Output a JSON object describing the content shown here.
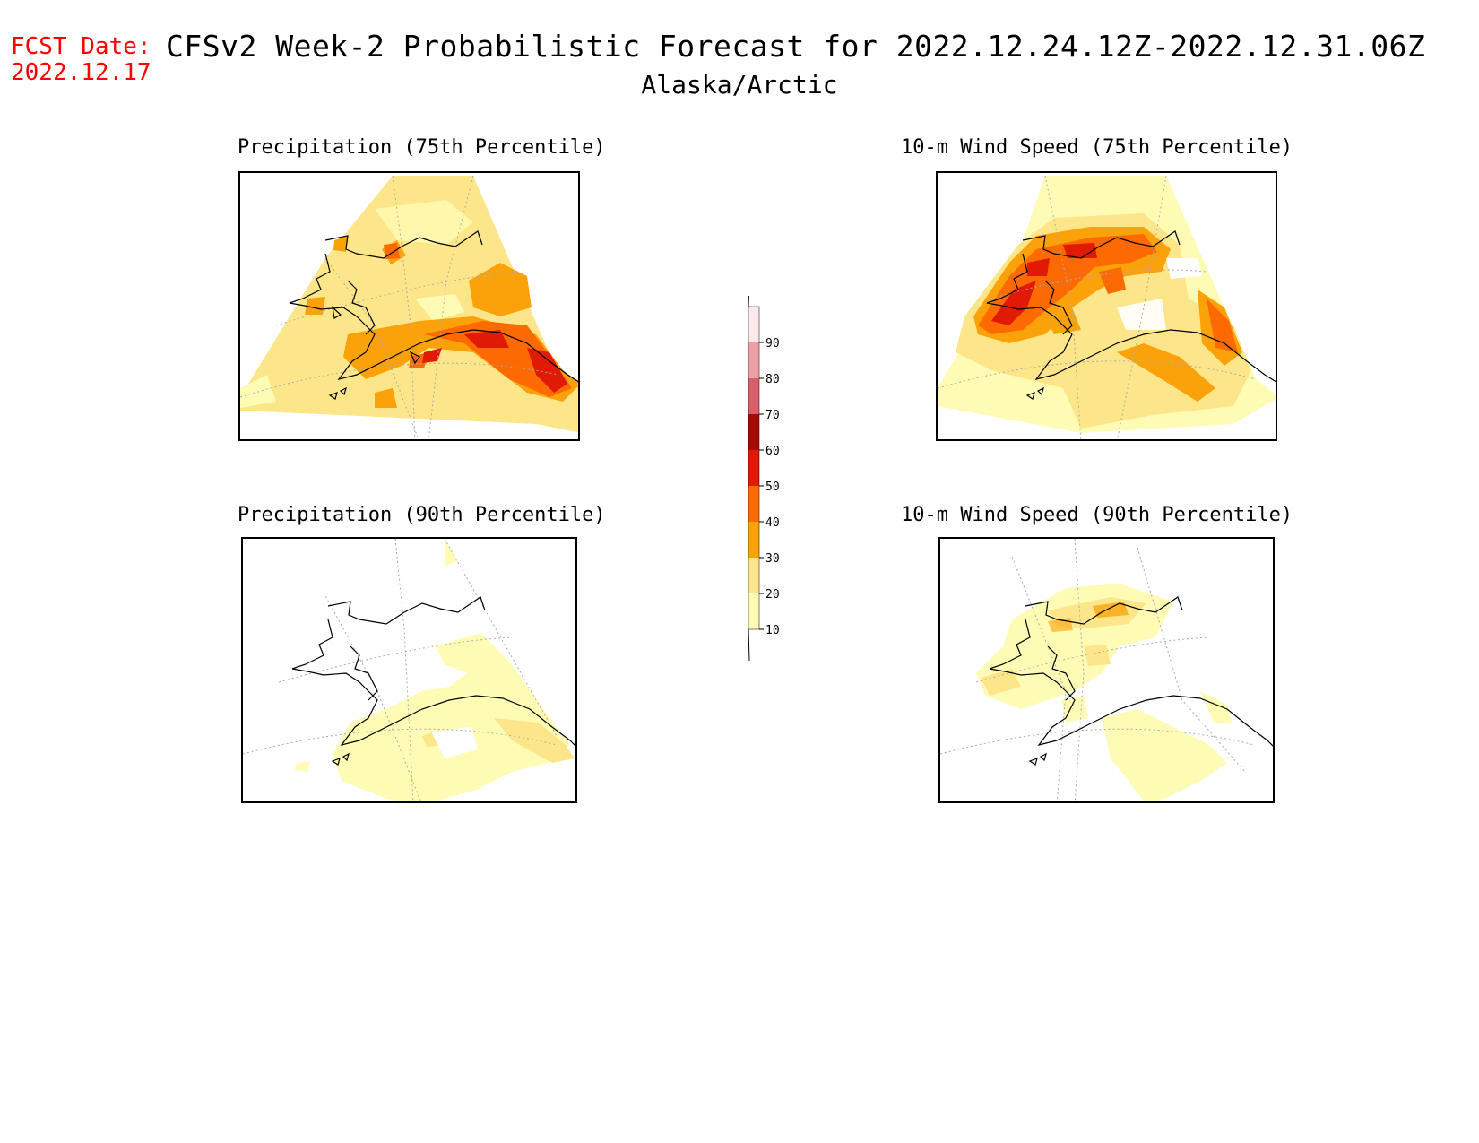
{
  "header": {
    "fcst_label": "FCST Date:",
    "fcst_date": "2022.12.17",
    "title": "CFSv2 Week-2 Probabilistic Forecast for 2022.12.24.12Z-2022.12.31.06Z",
    "region": "Alaska/Arctic"
  },
  "panels": [
    {
      "title": "Precipitation (75th Percentile)"
    },
    {
      "title": "10-m Wind Speed (75th Percentile)"
    },
    {
      "title": "Precipitation (90th Percentile)"
    },
    {
      "title": "10-m Wind Speed (90th Percentile)"
    }
  ],
  "colorbar": {
    "ticks": [
      "10",
      "20",
      "30",
      "40",
      "50",
      "60",
      "70",
      "80",
      "90"
    ],
    "colors": [
      "#fefbb4",
      "#fde68a",
      "#fba20a",
      "#fd6a02",
      "#e01a05",
      "#a50d03",
      "#d9606a",
      "#eda0a6",
      "#fde8ea"
    ]
  }
}
